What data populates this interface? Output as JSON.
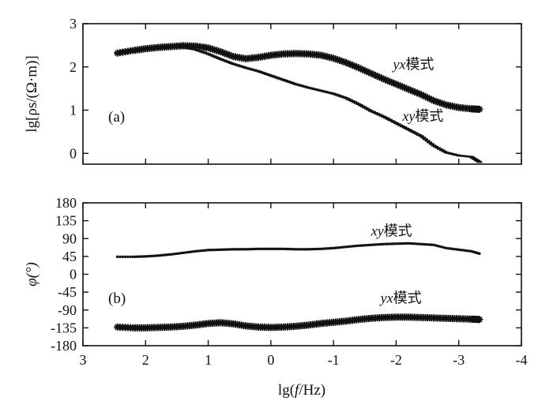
{
  "figure": {
    "shared_xlabel": "lg(f/Hz)"
  },
  "chart_data": [
    {
      "type": "scatter",
      "panel_label": "(a)",
      "ylabel": "lg[ρs/(Ω·m)]",
      "xlabel": "lg(f/Hz)",
      "xlim": [
        3,
        -4
      ],
      "ylim": [
        -0.25,
        3
      ],
      "x_ticks": [
        3,
        2,
        1,
        0,
        -1,
        -2,
        -3,
        -4
      ],
      "y_ticks": [
        0,
        1,
        2,
        3
      ],
      "grid": false,
      "series": [
        {
          "name": "yx模式",
          "marker": "star",
          "x": [
            2.45,
            2.2,
            2.0,
            1.8,
            1.6,
            1.4,
            1.2,
            1.0,
            0.8,
            0.6,
            0.4,
            0.2,
            0.0,
            -0.2,
            -0.4,
            -0.6,
            -0.8,
            -1.0,
            -1.2,
            -1.4,
            -1.6,
            -1.8,
            -2.0,
            -2.2,
            -2.4,
            -2.6,
            -2.8,
            -3.0,
            -3.2,
            -3.33
          ],
          "y": [
            2.32,
            2.38,
            2.42,
            2.45,
            2.47,
            2.49,
            2.48,
            2.44,
            2.35,
            2.24,
            2.19,
            2.22,
            2.27,
            2.3,
            2.31,
            2.3,
            2.27,
            2.2,
            2.1,
            1.98,
            1.85,
            1.72,
            1.6,
            1.48,
            1.36,
            1.22,
            1.12,
            1.06,
            1.03,
            1.02
          ]
        },
        {
          "name": "xy模式",
          "marker": "dash",
          "x": [
            2.45,
            2.2,
            2.0,
            1.8,
            1.6,
            1.4,
            1.2,
            1.0,
            0.8,
            0.6,
            0.4,
            0.2,
            0.0,
            -0.2,
            -0.4,
            -0.6,
            -0.8,
            -1.0,
            -1.2,
            -1.4,
            -1.6,
            -1.8,
            -2.0,
            -2.2,
            -2.4,
            -2.6,
            -2.8,
            -3.0,
            -3.2,
            -3.33
          ],
          "y": [
            2.32,
            2.38,
            2.42,
            2.45,
            2.46,
            2.45,
            2.4,
            2.3,
            2.18,
            2.07,
            1.98,
            1.9,
            1.8,
            1.7,
            1.6,
            1.52,
            1.45,
            1.38,
            1.28,
            1.14,
            0.98,
            0.85,
            0.7,
            0.55,
            0.4,
            0.18,
            0.02,
            -0.05,
            -0.08,
            -0.2
          ]
        }
      ],
      "annotations": [
        {
          "text_latin": "yx",
          "text_cjk": "模式",
          "x": -1.95,
          "y": 1.95
        },
        {
          "text_latin": "xy",
          "text_cjk": "模式",
          "x": -2.1,
          "y": 0.75
        }
      ]
    },
    {
      "type": "scatter",
      "panel_label": "(b)",
      "ylabel": "φ(°)",
      "xlabel": "lg(f/Hz)",
      "xlim": [
        3,
        -4
      ],
      "ylim": [
        -180,
        180
      ],
      "x_ticks": [
        3,
        2,
        1,
        0,
        -1,
        -2,
        -3,
        -4
      ],
      "y_ticks": [
        180,
        135,
        90,
        45,
        0,
        -45,
        -90,
        -135,
        -180
      ],
      "grid": false,
      "series": [
        {
          "name": "xy模式",
          "marker": "dot",
          "x": [
            2.45,
            2.2,
            2.0,
            1.8,
            1.6,
            1.4,
            1.2,
            1.0,
            0.8,
            0.6,
            0.4,
            0.2,
            0.0,
            -0.2,
            -0.4,
            -0.6,
            -0.8,
            -1.0,
            -1.2,
            -1.4,
            -1.6,
            -1.8,
            -2.0,
            -2.2,
            -2.4,
            -2.6,
            -2.8,
            -3.0,
            -3.2,
            -3.33
          ],
          "y": [
            44,
            44,
            45,
            47,
            50,
            54,
            58,
            61,
            62,
            63,
            63,
            64,
            64,
            64,
            63,
            63,
            64,
            66,
            69,
            72,
            74,
            76,
            77,
            78,
            76,
            74,
            66,
            62,
            58,
            52
          ]
        },
        {
          "name": "yx模式",
          "marker": "star",
          "x": [
            2.45,
            2.2,
            2.0,
            1.8,
            1.6,
            1.4,
            1.2,
            1.0,
            0.8,
            0.6,
            0.4,
            0.2,
            0.0,
            -0.2,
            -0.4,
            -0.6,
            -0.8,
            -1.0,
            -1.2,
            -1.4,
            -1.6,
            -1.8,
            -2.0,
            -2.2,
            -2.4,
            -2.6,
            -2.8,
            -3.0,
            -3.2,
            -3.33
          ],
          "y": [
            -133,
            -135,
            -135,
            -134,
            -133,
            -131,
            -128,
            -124,
            -122,
            -125,
            -130,
            -133,
            -134,
            -133,
            -131,
            -128,
            -124,
            -121,
            -118,
            -114,
            -111,
            -109,
            -108,
            -108,
            -109,
            -110,
            -111,
            -112,
            -113,
            -114
          ]
        }
      ],
      "annotations": [
        {
          "text_latin": "xy",
          "text_cjk": "模式",
          "x": -1.6,
          "y": 97
        },
        {
          "text_latin": "yx",
          "text_cjk": "模式",
          "x": -1.75,
          "y": -72
        }
      ]
    }
  ]
}
